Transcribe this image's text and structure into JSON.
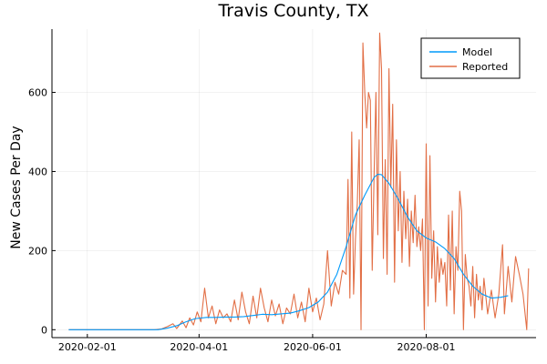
{
  "chart_data": {
    "type": "line",
    "title": "Travis County, TX",
    "xlabel": "",
    "ylabel": "New Cases Per Day",
    "x_type": "date",
    "xlim": [
      "2020-01-13",
      "2020-09-29"
    ],
    "ylim": [
      -20,
      760
    ],
    "grid": true,
    "legend_position": "top-right",
    "x_ticks": [
      "2020-02-01",
      "2020-04-01",
      "2020-06-01",
      "2020-08-01"
    ],
    "y_ticks": [
      0,
      200,
      400,
      600
    ],
    "series": [
      {
        "name": "Model",
        "color": "#009AFA",
        "points": [
          [
            "2020-01-22",
            0
          ],
          [
            "2020-02-15",
            0
          ],
          [
            "2020-03-10",
            0
          ],
          [
            "2020-03-15",
            4
          ],
          [
            "2020-03-20",
            10
          ],
          [
            "2020-03-25",
            20
          ],
          [
            "2020-03-30",
            28
          ],
          [
            "2020-04-05",
            31
          ],
          [
            "2020-04-10",
            31
          ],
          [
            "2020-04-15",
            32
          ],
          [
            "2020-04-20",
            32
          ],
          [
            "2020-04-25",
            33
          ],
          [
            "2020-04-30",
            36
          ],
          [
            "2020-05-05",
            39
          ],
          [
            "2020-05-10",
            38
          ],
          [
            "2020-05-15",
            40
          ],
          [
            "2020-05-20",
            42
          ],
          [
            "2020-05-25",
            48
          ],
          [
            "2020-05-30",
            56
          ],
          [
            "2020-06-04",
            70
          ],
          [
            "2020-06-09",
            95
          ],
          [
            "2020-06-14",
            140
          ],
          [
            "2020-06-19",
            210
          ],
          [
            "2020-06-24",
            290
          ],
          [
            "2020-06-29",
            340
          ],
          [
            "2020-07-04",
            385
          ],
          [
            "2020-07-06",
            393
          ],
          [
            "2020-07-08",
            392
          ],
          [
            "2020-07-12",
            370
          ],
          [
            "2020-07-17",
            330
          ],
          [
            "2020-07-22",
            285
          ],
          [
            "2020-07-27",
            250
          ],
          [
            "2020-08-01",
            232
          ],
          [
            "2020-08-06",
            222
          ],
          [
            "2020-08-11",
            205
          ],
          [
            "2020-08-16",
            180
          ],
          [
            "2020-08-21",
            140
          ],
          [
            "2020-08-26",
            110
          ],
          [
            "2020-08-31",
            90
          ],
          [
            "2020-09-05",
            80
          ],
          [
            "2020-09-10",
            82
          ],
          [
            "2020-09-14",
            86
          ]
        ]
      },
      {
        "name": "Reported",
        "color": "#E26F46",
        "points": [
          [
            "2020-01-22",
            0
          ],
          [
            "2020-02-15",
            0
          ],
          [
            "2020-03-08",
            0
          ],
          [
            "2020-03-12",
            2
          ],
          [
            "2020-03-15",
            8
          ],
          [
            "2020-03-18",
            15
          ],
          [
            "2020-03-20",
            3
          ],
          [
            "2020-03-23",
            22
          ],
          [
            "2020-03-25",
            5
          ],
          [
            "2020-03-27",
            30
          ],
          [
            "2020-03-29",
            12
          ],
          [
            "2020-03-31",
            45
          ],
          [
            "2020-04-02",
            20
          ],
          [
            "2020-04-04",
            105
          ],
          [
            "2020-04-06",
            30
          ],
          [
            "2020-04-08",
            60
          ],
          [
            "2020-04-10",
            15
          ],
          [
            "2020-04-12",
            50
          ],
          [
            "2020-04-14",
            30
          ],
          [
            "2020-04-16",
            40
          ],
          [
            "2020-04-18",
            20
          ],
          [
            "2020-04-20",
            75
          ],
          [
            "2020-04-22",
            25
          ],
          [
            "2020-04-24",
            95
          ],
          [
            "2020-04-26",
            45
          ],
          [
            "2020-04-28",
            15
          ],
          [
            "2020-04-30",
            85
          ],
          [
            "2020-05-02",
            30
          ],
          [
            "2020-05-04",
            105
          ],
          [
            "2020-05-06",
            55
          ],
          [
            "2020-05-08",
            20
          ],
          [
            "2020-05-10",
            75
          ],
          [
            "2020-05-12",
            35
          ],
          [
            "2020-05-14",
            65
          ],
          [
            "2020-05-16",
            15
          ],
          [
            "2020-05-18",
            55
          ],
          [
            "2020-05-20",
            40
          ],
          [
            "2020-05-22",
            90
          ],
          [
            "2020-05-24",
            30
          ],
          [
            "2020-05-26",
            70
          ],
          [
            "2020-05-28",
            20
          ],
          [
            "2020-05-30",
            105
          ],
          [
            "2020-06-01",
            45
          ],
          [
            "2020-06-03",
            80
          ],
          [
            "2020-06-05",
            25
          ],
          [
            "2020-06-07",
            65
          ],
          [
            "2020-06-09",
            200
          ],
          [
            "2020-06-11",
            60
          ],
          [
            "2020-06-13",
            120
          ],
          [
            "2020-06-15",
            90
          ],
          [
            "2020-06-17",
            150
          ],
          [
            "2020-06-19",
            140
          ],
          [
            "2020-06-20",
            380
          ],
          [
            "2020-06-21",
            80
          ],
          [
            "2020-06-22",
            500
          ],
          [
            "2020-06-23",
            90
          ],
          [
            "2020-06-24",
            230
          ],
          [
            "2020-06-25",
            320
          ],
          [
            "2020-06-26",
            480
          ],
          [
            "2020-06-27",
            0
          ],
          [
            "2020-06-28",
            725
          ],
          [
            "2020-06-29",
            600
          ],
          [
            "2020-06-30",
            510
          ],
          [
            "2020-07-01",
            600
          ],
          [
            "2020-07-02",
            580
          ],
          [
            "2020-07-03",
            150
          ],
          [
            "2020-07-04",
            390
          ],
          [
            "2020-07-05",
            600
          ],
          [
            "2020-07-06",
            240
          ],
          [
            "2020-07-07",
            750
          ],
          [
            "2020-07-08",
            660
          ],
          [
            "2020-07-09",
            180
          ],
          [
            "2020-07-10",
            430
          ],
          [
            "2020-07-11",
            140
          ],
          [
            "2020-07-12",
            660
          ],
          [
            "2020-07-13",
            360
          ],
          [
            "2020-07-14",
            570
          ],
          [
            "2020-07-15",
            120
          ],
          [
            "2020-07-16",
            480
          ],
          [
            "2020-07-17",
            250
          ],
          [
            "2020-07-18",
            400
          ],
          [
            "2020-07-19",
            170
          ],
          [
            "2020-07-20",
            350
          ],
          [
            "2020-07-21",
            230
          ],
          [
            "2020-07-22",
            330
          ],
          [
            "2020-07-23",
            160
          ],
          [
            "2020-07-24",
            300
          ],
          [
            "2020-07-25",
            220
          ],
          [
            "2020-07-26",
            340
          ],
          [
            "2020-07-27",
            210
          ],
          [
            "2020-07-28",
            260
          ],
          [
            "2020-07-29",
            200
          ],
          [
            "2020-07-30",
            280
          ],
          [
            "2020-07-31",
            0
          ],
          [
            "2020-08-01",
            470
          ],
          [
            "2020-08-02",
            60
          ],
          [
            "2020-08-03",
            440
          ],
          [
            "2020-08-04",
            130
          ],
          [
            "2020-08-05",
            250
          ],
          [
            "2020-08-06",
            70
          ],
          [
            "2020-08-07",
            210
          ],
          [
            "2020-08-08",
            120
          ],
          [
            "2020-08-09",
            180
          ],
          [
            "2020-08-10",
            140
          ],
          [
            "2020-08-11",
            170
          ],
          [
            "2020-08-12",
            60
          ],
          [
            "2020-08-13",
            290
          ],
          [
            "2020-08-14",
            100
          ],
          [
            "2020-08-15",
            300
          ],
          [
            "2020-08-16",
            40
          ],
          [
            "2020-08-17",
            210
          ],
          [
            "2020-08-18",
            150
          ],
          [
            "2020-08-19",
            350
          ],
          [
            "2020-08-20",
            300
          ],
          [
            "2020-08-21",
            0
          ],
          [
            "2020-08-22",
            190
          ],
          [
            "2020-08-23",
            130
          ],
          [
            "2020-08-24",
            110
          ],
          [
            "2020-08-25",
            60
          ],
          [
            "2020-08-26",
            160
          ],
          [
            "2020-08-27",
            30
          ],
          [
            "2020-08-28",
            140
          ],
          [
            "2020-08-29",
            75
          ],
          [
            "2020-08-30",
            110
          ],
          [
            "2020-08-31",
            50
          ],
          [
            "2020-09-01",
            130
          ],
          [
            "2020-09-03",
            40
          ],
          [
            "2020-09-05",
            100
          ],
          [
            "2020-09-07",
            30
          ],
          [
            "2020-09-09",
            90
          ],
          [
            "2020-09-11",
            215
          ],
          [
            "2020-09-12",
            40
          ],
          [
            "2020-09-14",
            160
          ],
          [
            "2020-09-16",
            70
          ],
          [
            "2020-09-18",
            185
          ],
          [
            "2020-09-20",
            140
          ],
          [
            "2020-09-22",
            90
          ],
          [
            "2020-09-24",
            0
          ],
          [
            "2020-09-25",
            155
          ]
        ]
      }
    ]
  }
}
